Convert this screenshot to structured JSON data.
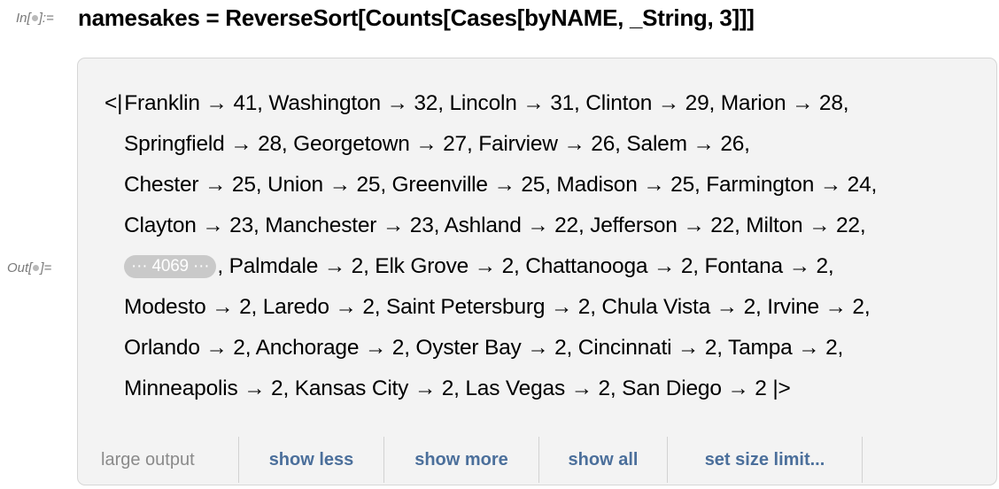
{
  "input_label": {
    "prefix": "In[",
    "suffix": "]:="
  },
  "output_label": {
    "prefix": "Out[",
    "suffix": "]="
  },
  "input_code": "namesakes = ReverseSort[Counts[Cases[byNAME, _String, 3]]]",
  "output": {
    "open": "<|",
    "close": "|>",
    "lines": [
      "Franklin → 41, Washington → 32, Lincoln → 31, Clinton → 29, Marion → 28,",
      "Springfield → 28, Georgetown → 27, Fairview → 26, Salem → 26,",
      "Chester → 25, Union → 25, Greenville → 25, Madison → 25, Farmington → 24,",
      "Clayton → 23, Manchester → 23, Ashland → 22, Jefferson → 22, Milton → 22,",
      ", Palmdale → 2, Elk Grove → 2, Chattanooga → 2, Fontana → 2,",
      "Modesto → 2, Laredo → 2, Saint Petersburg → 2, Chula Vista → 2, Irvine → 2,",
      "Orlando → 2, Anchorage → 2, Oyster Bay → 2, Cincinnati → 2, Tampa → 2,",
      "Minneapolis → 2, Kansas City → 2, Las Vegas → 2, San Diego → 2"
    ],
    "elided": "··· 4069 ···"
  },
  "footer": {
    "large_output": "large output",
    "show_less": "show less",
    "show_more": "show more",
    "show_all": "show all",
    "set_size_limit": "set size limit..."
  }
}
